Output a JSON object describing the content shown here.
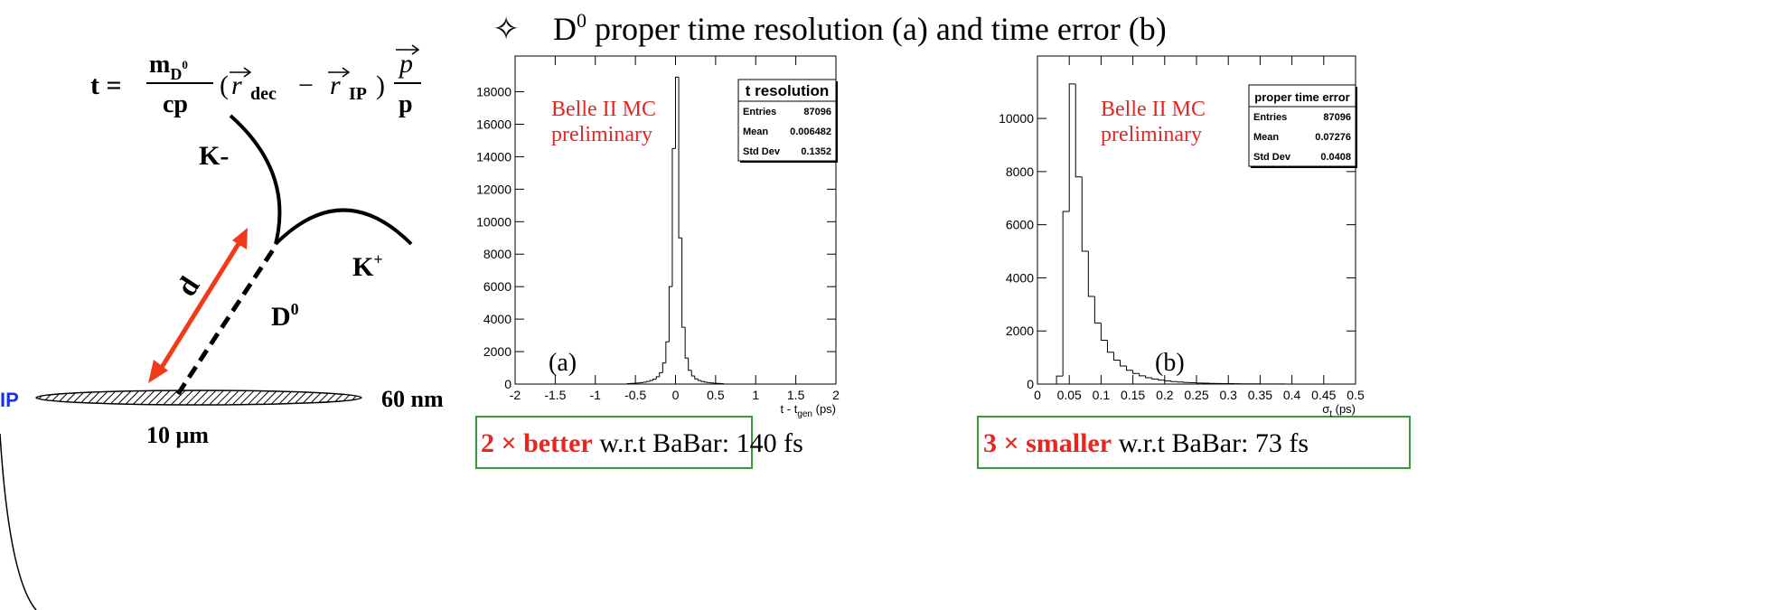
{
  "headline": {
    "bullet": "✧",
    "d": "D",
    "sup": "0",
    "rest": " proper time resolution (a) and time error (b)"
  },
  "formula": {
    "lhs": "t =",
    "m": "m",
    "m_sub": "D",
    "m_sup": "0",
    "den": "cp",
    "lparen": "(",
    "r1": "r",
    "r1_sub": "dec",
    "minus": "−",
    "r2": "r",
    "r2_sub": "IP",
    "rparen": ")",
    "p_num": "p",
    "p_den": "p"
  },
  "diagram": {
    "k_minus": "K-",
    "k_plus": "K",
    "k_plus_sup": "+",
    "d0": "D",
    "d0_sup": "0",
    "d": "d",
    "ip": "IP",
    "height": "60 nm",
    "width": "10 μm"
  },
  "boxes": [
    {
      "highlight": "2 × better",
      "rest": " w.r.t BaBar: 140 fs"
    },
    {
      "highlight": "3 × smaller",
      "rest": " w.r.t BaBar: 73 fs"
    }
  ],
  "chart_data": [
    {
      "type": "histogram",
      "color": "#000000",
      "grid": false,
      "bins": [
        -0.6,
        -0.56,
        -0.52,
        -0.48,
        -0.44,
        -0.4,
        -0.36,
        -0.32,
        -0.28,
        -0.24,
        -0.2,
        -0.16,
        -0.12,
        -0.08,
        -0.04,
        0,
        0.04,
        0.08,
        0.12,
        0.16,
        0.2,
        0.24,
        0.28,
        0.32,
        0.36,
        0.4,
        0.44,
        0.48,
        0.52,
        0.56,
        0.6
      ],
      "counts": [
        30,
        40,
        50,
        70,
        90,
        120,
        160,
        220,
        300,
        450,
        700,
        1300,
        2600,
        6000,
        14500,
        18900,
        9000,
        3500,
        1600,
        850,
        500,
        320,
        220,
        160,
        120,
        90,
        70,
        50,
        40,
        30
      ],
      "xlim": [
        -2,
        2
      ],
      "ylim": [
        0,
        20200
      ],
      "xticks": [
        -2,
        -1.5,
        -1,
        -0.5,
        0,
        0.5,
        1,
        1.5,
        2
      ],
      "yticks": [
        0,
        2000,
        4000,
        6000,
        8000,
        10000,
        12000,
        14000,
        16000,
        18000
      ],
      "x_label": "t - t",
      "x_label_sub": "gen",
      "x_label_unit": " (ps)",
      "annotations": [
        "Belle II MC",
        "preliminary"
      ],
      "panel_label": "(a)",
      "stats": {
        "title": "t resolution",
        "rows": [
          [
            "Entries",
            "87096"
          ],
          [
            "Mean",
            "0.006482"
          ],
          [
            "Std Dev",
            "0.1352"
          ]
        ]
      }
    },
    {
      "type": "histogram",
      "color": "#000000",
      "grid": false,
      "bins": [
        0.02,
        0.03,
        0.04,
        0.05,
        0.06,
        0.07,
        0.08,
        0.09,
        0.1,
        0.11,
        0.12,
        0.13,
        0.14,
        0.15,
        0.16,
        0.17,
        0.18,
        0.19,
        0.2,
        0.21,
        0.22,
        0.23,
        0.24,
        0.25,
        0.26,
        0.27,
        0.28,
        0.29,
        0.3,
        0.31,
        0.32,
        0.33,
        0.34,
        0.35,
        0.36,
        0.37,
        0.38,
        0.39,
        0.4
      ],
      "counts": [
        0,
        300,
        6500,
        11300,
        7800,
        5000,
        3300,
        2300,
        1650,
        1200,
        900,
        680,
        520,
        400,
        310,
        240,
        190,
        150,
        120,
        95,
        75,
        60,
        50,
        40,
        33,
        27,
        22,
        18,
        15,
        12,
        10,
        8,
        7,
        6,
        5,
        4,
        3,
        2
      ],
      "xlim": [
        0,
        0.5
      ],
      "ylim": [
        0,
        12350
      ],
      "xticks": [
        0,
        0.05,
        0.1,
        0.15,
        0.2,
        0.25,
        0.3,
        0.35,
        0.4,
        0.45,
        0.5
      ],
      "yticks": [
        0,
        2000,
        4000,
        6000,
        8000,
        10000
      ],
      "x_label": "σ",
      "x_label_sub": "t",
      "x_label_unit": " (ps)",
      "annotations": [
        "Belle II MC",
        "preliminary"
      ],
      "panel_label": "(b)",
      "stats": {
        "title": "proper time error",
        "rows": [
          [
            "Entries",
            "87096"
          ],
          [
            "Mean",
            "0.07276"
          ],
          [
            "Std Dev",
            "0.0408"
          ]
        ]
      }
    }
  ]
}
